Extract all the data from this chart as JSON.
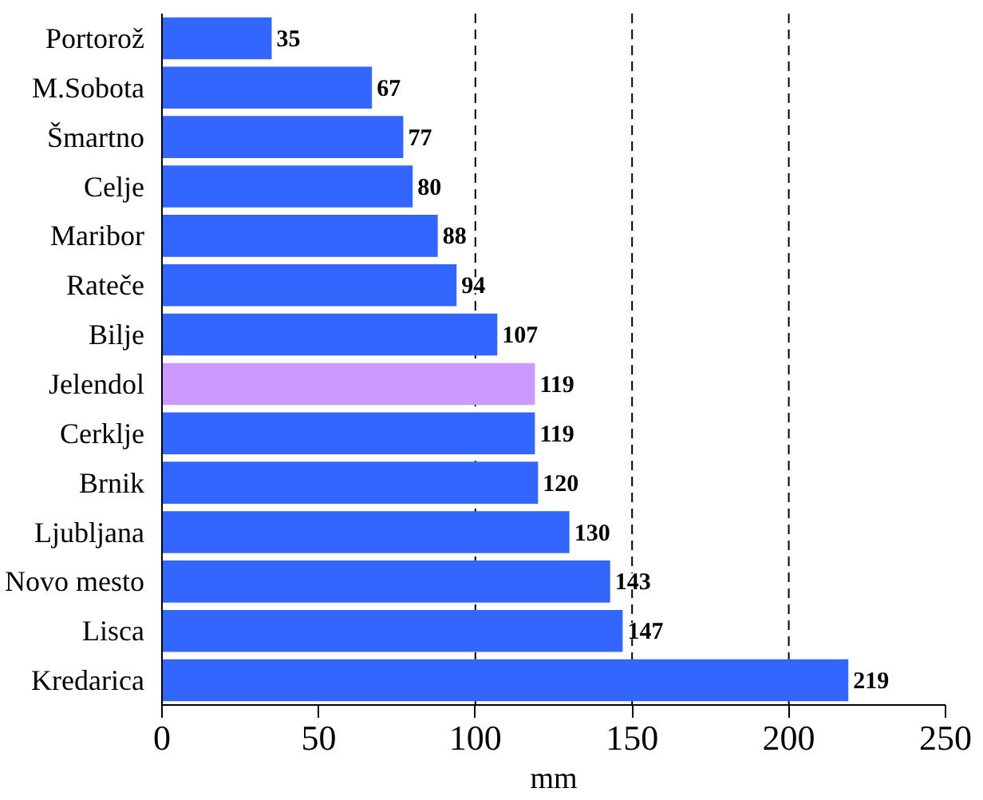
{
  "chart_data": {
    "type": "bar",
    "orientation": "horizontal",
    "xlabel": "mm",
    "categories": [
      "Portorož",
      "M.Sobota",
      "Šmartno",
      "Celje",
      "Maribor",
      "Rateče",
      "Bilje",
      "Jelendol",
      "Cerklje",
      "Brnik",
      "Ljubljana",
      "Novo mesto",
      "Lisca",
      "Kredarica"
    ],
    "values": [
      35,
      67,
      77,
      80,
      88,
      94,
      107,
      119,
      119,
      120,
      130,
      143,
      147,
      219
    ],
    "colors": [
      "#3366ff",
      "#3366ff",
      "#3366ff",
      "#3366ff",
      "#3366ff",
      "#3366ff",
      "#3366ff",
      "#cc99ff",
      "#3366ff",
      "#3366ff",
      "#3366ff",
      "#3366ff",
      "#3366ff",
      "#3366ff"
    ],
    "xlim": [
      0,
      250
    ],
    "xticks": [
      0,
      50,
      100,
      150,
      200,
      250
    ],
    "ref_lines": [
      {
        "axis": "x",
        "value": 100,
        "line_style": "dashed",
        "color": "#000000"
      },
      {
        "axis": "x",
        "value": 150,
        "line_style": "dashed",
        "color": "#000000"
      },
      {
        "axis": "x",
        "value": 200,
        "line_style": "dashed",
        "color": "#000000"
      }
    ],
    "data_labels": true,
    "grid": false
  }
}
